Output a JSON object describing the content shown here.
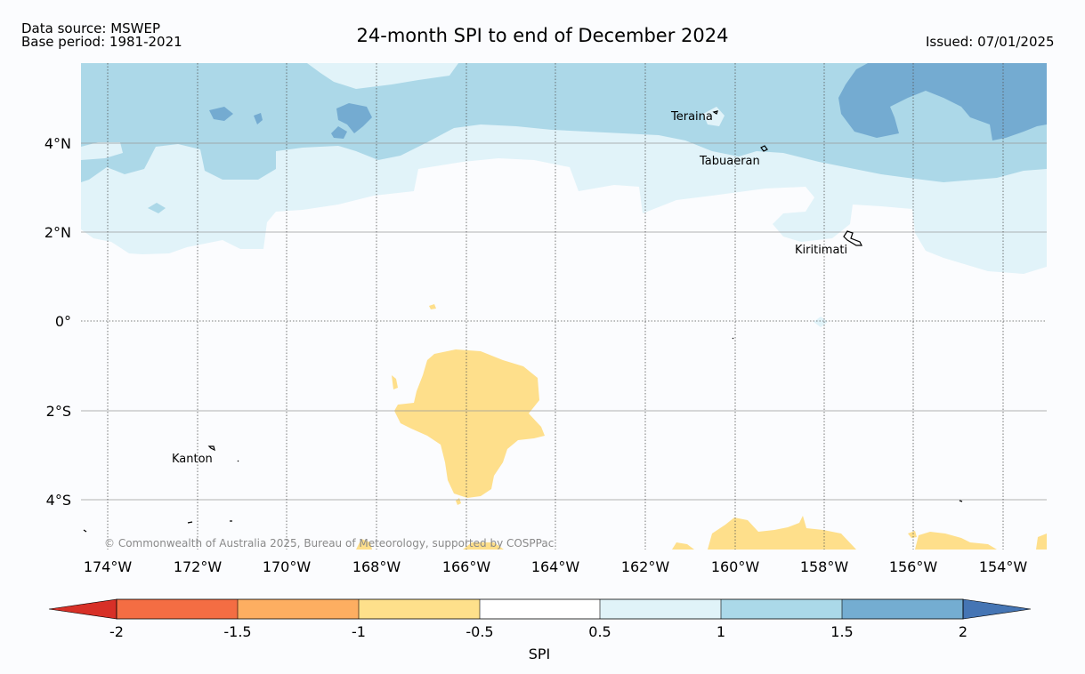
{
  "header": {
    "source": "Data source: MSWEP",
    "base_period": "Base period: 1981-2021",
    "title": "24-month SPI to end of December 2024",
    "issued": "Issued: 07/01/2025"
  },
  "map": {
    "lat_labels": [
      "4°N",
      "2°N",
      "0°",
      "2°S",
      "4°S"
    ],
    "lon_labels": [
      "174°W",
      "172°W",
      "170°W",
      "168°W",
      "166°W",
      "164°W",
      "162°W",
      "160°W",
      "158°W",
      "156°W",
      "154°W"
    ],
    "places": {
      "teraina": "Teraina",
      "tabuaeran": "Tabuaeran",
      "kiritimati": "Kiritimati",
      "kanton": "Kanton"
    },
    "copyright": "© Commonwealth of Australia 2025, Bureau of Meteorology, supported by COSPPac",
    "colors": {
      "spi_1_0_to_1_5": "#acd8e8",
      "spi_0_5_to_1_0": "#e1f3f9",
      "spi_1_5_to_2_0": "#74abd1",
      "spi_minus_1_0_to_minus_0_5": "#fedf8b"
    }
  },
  "colorbar": {
    "ticks": [
      "-2",
      "-1.5",
      "-1",
      "-0.5",
      "0.5",
      "1",
      "1.5",
      "2"
    ],
    "label": "SPI",
    "colors": {
      "below_minus_2": "#d73027",
      "minus_2_to_minus_1_5": "#f46d43",
      "minus_1_5_to_minus_1": "#fdae61",
      "minus_1_to_minus_0_5": "#fee08b",
      "minus_0_5_to_0_5": "#ffffff",
      "0_5_to_1": "#e0f3f8",
      "1_to_1_5": "#abd9e9",
      "1_5_to_2": "#74add1",
      "above_2": "#4575b4"
    }
  }
}
